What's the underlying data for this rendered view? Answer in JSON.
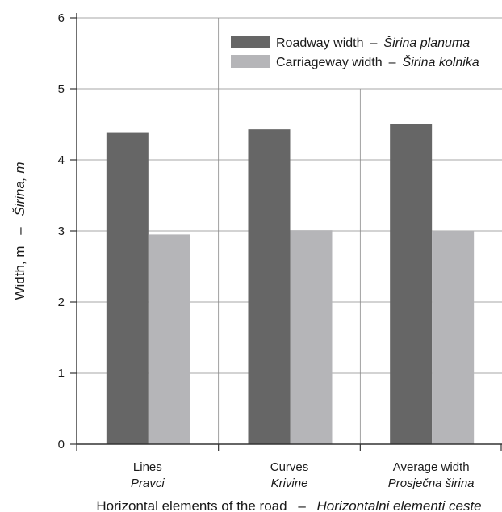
{
  "chart_data": {
    "type": "bar",
    "categories": [
      "Lines",
      "Curves",
      "Average width"
    ],
    "categories_sub": [
      "Pravci",
      "Krivine",
      "Prosječna širina"
    ],
    "series": [
      {
        "name": "Roadway width",
        "name_sub": "Širina planuma",
        "color": "#666666",
        "values": [
          4.38,
          4.43,
          4.5
        ]
      },
      {
        "name": "Carriageway width",
        "name_sub": "Širina kolnika",
        "color": "#b5b5b8",
        "values": [
          2.95,
          3.01,
          3.0
        ]
      }
    ],
    "xlabel": "Horizontal elements of the road",
    "xlabel_sub": "Horizontalni elementi ceste",
    "ylabel": "Width, m",
    "ylabel_sub": "Širina, m",
    "ylim": [
      0,
      6
    ],
    "yticks": [
      0,
      1,
      2,
      3,
      4,
      5,
      6
    ],
    "grid": true,
    "legend": "top-right",
    "separator": "–"
  }
}
